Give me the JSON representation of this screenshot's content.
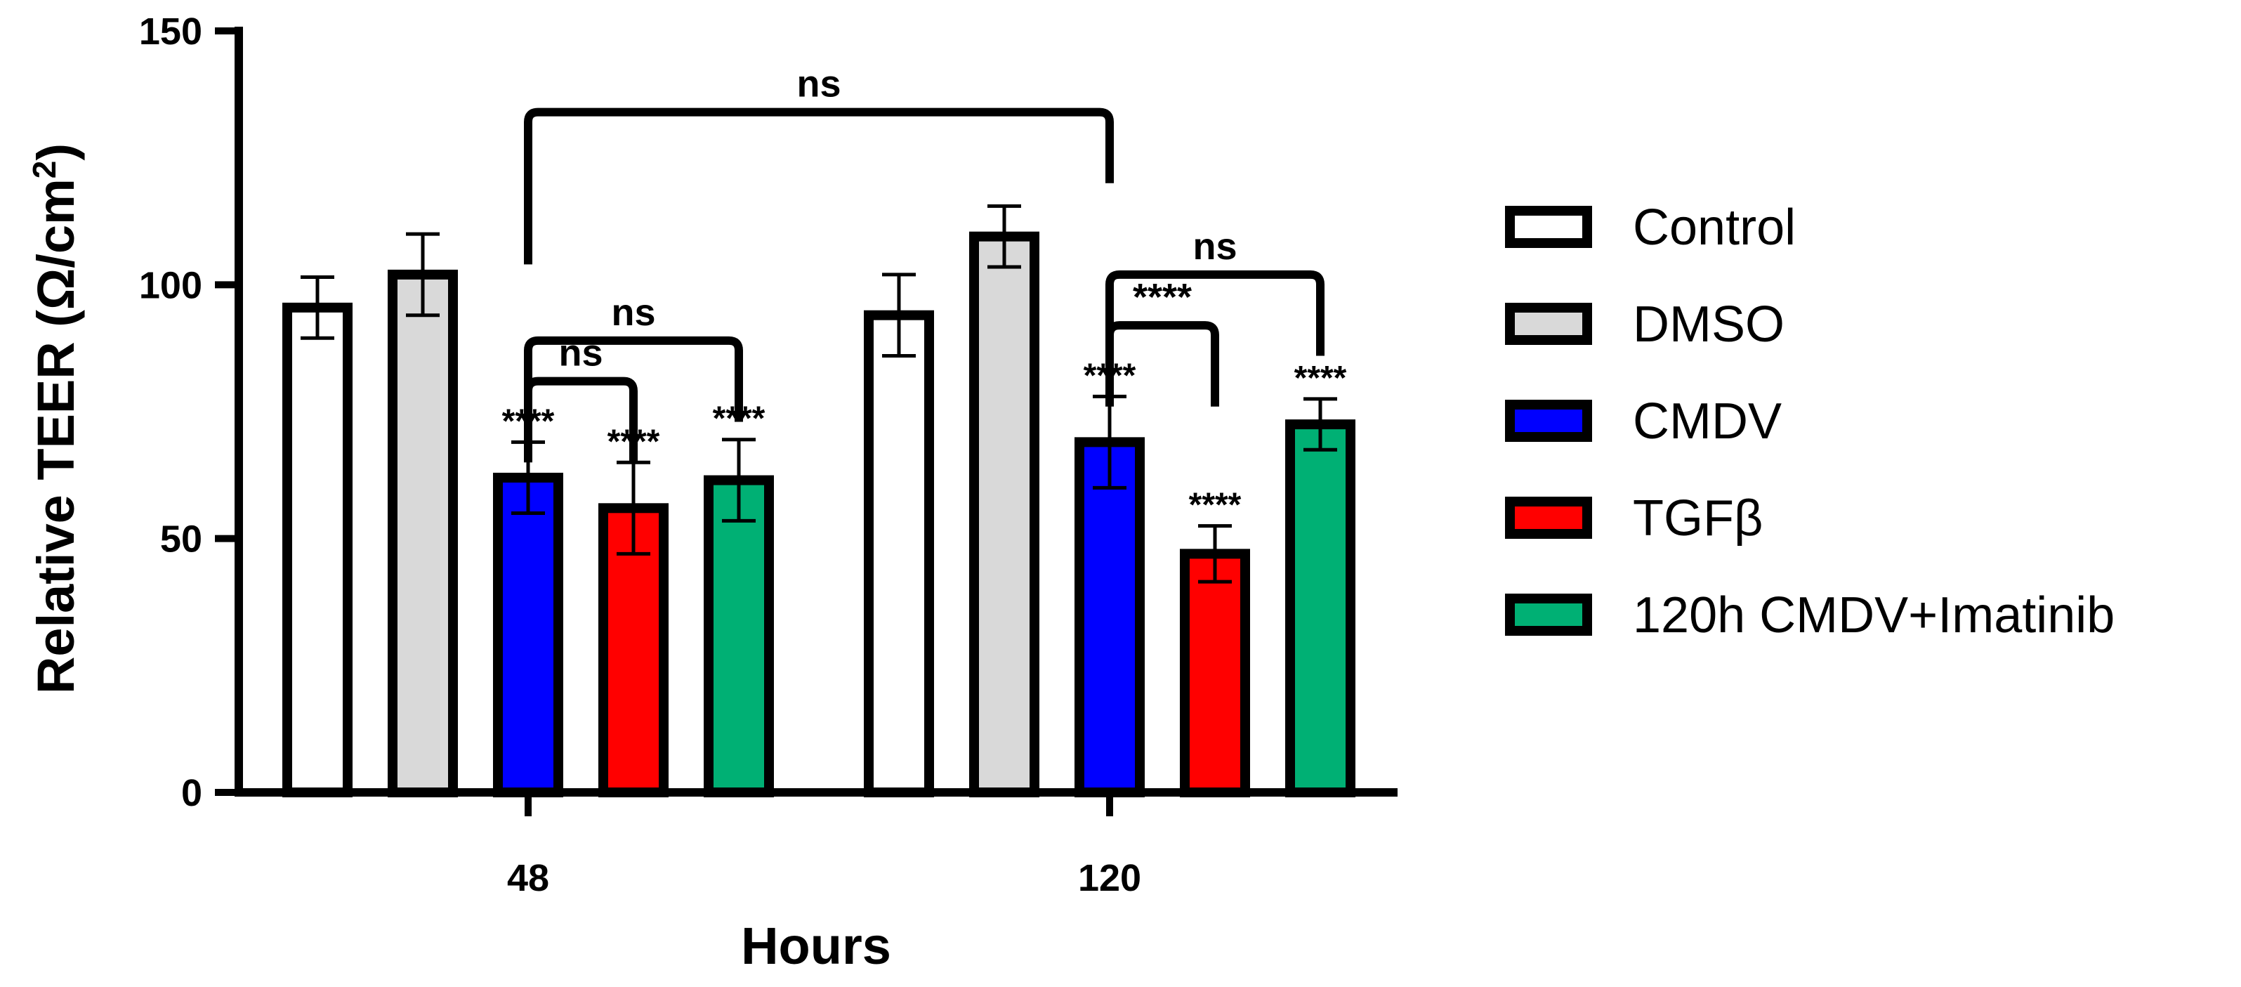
{
  "chart_data": {
    "type": "bar",
    "xlabel": "Hours",
    "ylabel": "Relative TEER (Ω/cm²)",
    "ylabel_parts": {
      "pre": "Relative TEER (Ω/cm",
      "sup": "2",
      "post": ")"
    },
    "ylim": [
      0,
      150
    ],
    "yticks": [
      0,
      50,
      100,
      150
    ],
    "categories": [
      "48",
      "120"
    ],
    "legend_position": "right",
    "grid": false,
    "series": [
      {
        "name": "Control",
        "color": "#ffffff",
        "values": [
          95.5,
          94.0
        ],
        "errors": [
          6.0,
          8.0
        ],
        "annotations": [
          "",
          ""
        ]
      },
      {
        "name": "DMSO",
        "color": "#d9d9d9",
        "values": [
          102.0,
          109.5
        ],
        "errors": [
          8.0,
          6.0
        ],
        "annotations": [
          "",
          ""
        ]
      },
      {
        "name": "CMDV",
        "color": "#0000ff",
        "values": [
          62.0,
          69.0
        ],
        "errors": [
          7.0,
          9.0
        ],
        "annotations": [
          "****",
          "****"
        ]
      },
      {
        "name": "TGFβ",
        "color": "#ff0000",
        "values": [
          56.0,
          47.0
        ],
        "errors": [
          9.0,
          5.5
        ],
        "annotations": [
          "****",
          "****"
        ]
      },
      {
        "name": "120h CMDV+Imatinib",
        "color": "#00b074",
        "values": [
          61.5,
          72.5
        ],
        "errors": [
          8.0,
          5.0
        ],
        "annotations": [
          "****",
          "****"
        ]
      }
    ],
    "comparisons": [
      {
        "group_a": 0,
        "series_a": 2,
        "group_b": 1,
        "series_b": 2,
        "label": "ns"
      },
      {
        "group_a": 0,
        "series_a": 2,
        "group_b": 0,
        "series_b": 3,
        "label": "ns"
      },
      {
        "group_a": 0,
        "series_a": 2,
        "group_b": 0,
        "series_b": 4,
        "label": "ns"
      },
      {
        "group_a": 1,
        "series_a": 2,
        "group_b": 1,
        "series_b": 3,
        "label": "****"
      },
      {
        "group_a": 1,
        "series_a": 2,
        "group_b": 1,
        "series_b": 4,
        "label": "ns"
      }
    ]
  }
}
